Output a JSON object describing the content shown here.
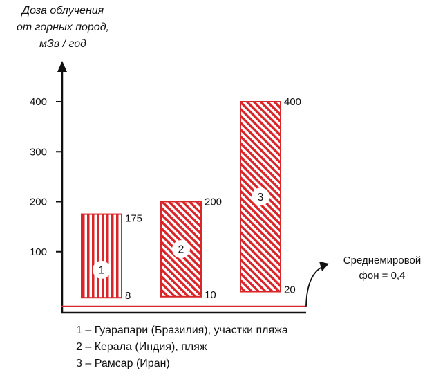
{
  "chart_data": {
    "type": "bar",
    "ylabel": [
      "Доза облучения",
      "от горных пород,",
      "мЗв / год"
    ],
    "yticks": [
      100,
      200,
      300,
      400
    ],
    "ylim": [
      -10,
      420
    ],
    "bars": [
      {
        "id": "1",
        "low": 8,
        "high": 175,
        "low_label": "8",
        "high_label": "175",
        "pattern": "vertical-stripes"
      },
      {
        "id": "2",
        "low": 10,
        "high": 200,
        "low_label": "10",
        "high_label": "200",
        "pattern": "diagonal-stripes"
      },
      {
        "id": "3",
        "low": 20,
        "high": 400,
        "low_label": "20",
        "high_label": "400",
        "pattern": "diagonal-stripes"
      }
    ],
    "baseline": {
      "value": 0.4,
      "label_lines": [
        "Среднемировой",
        "фон = 0,4"
      ]
    },
    "legend": [
      "1 – Гуарапари (Бразилия), участки пляжа",
      "2 – Керала (Индия), пляж",
      "3 – Рамсар (Иран)"
    ],
    "colors": {
      "bar": "#d9262b",
      "baseline": "#d9262b",
      "axis": "#111111"
    }
  }
}
